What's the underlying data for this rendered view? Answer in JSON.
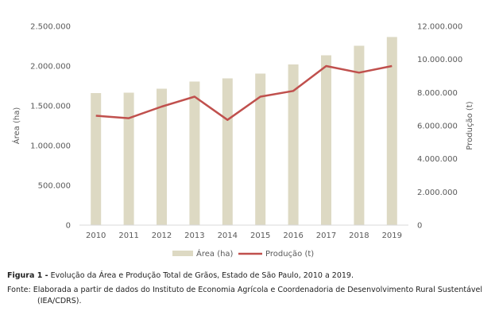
{
  "chart_data": {
    "type": "bar+line",
    "categories": [
      "2010",
      "2011",
      "2012",
      "2013",
      "2014",
      "2015",
      "2016",
      "2017",
      "2018",
      "2019"
    ],
    "series": [
      {
        "name": "Área (ha)",
        "type": "bar",
        "axis": "left",
        "color": "#ddd9c3",
        "values": [
          1660000,
          1665000,
          1715000,
          1805000,
          1845000,
          1905000,
          2020000,
          2135000,
          2255000,
          2365000
        ]
      },
      {
        "name": "Produção (t)",
        "type": "line",
        "axis": "right",
        "color": "#c0504d",
        "values": [
          6600000,
          6450000,
          7150000,
          7750000,
          6350000,
          7750000,
          8100000,
          9600000,
          9200000,
          9600000
        ]
      }
    ],
    "y_left": {
      "label": "Área (ha)",
      "range": [
        0,
        2500000
      ],
      "ticks": [
        "0",
        "500.000",
        "1.000.000",
        "1.500.000",
        "2.000.000",
        "2.500.000"
      ]
    },
    "y_right": {
      "label": "Produção (t)",
      "range": [
        0,
        12000000
      ],
      "ticks": [
        "0",
        "2.000.000",
        "4.000.000",
        "6.000.000",
        "8.000.000",
        "10.000.000",
        "12.000.000"
      ]
    },
    "grid": false,
    "legend_position": "bottom"
  },
  "legend": {
    "area_label": "Área (ha)",
    "producao_label": "Produção (t)"
  },
  "caption": {
    "figure_label": "Figura 1 -",
    "figure_text": " Evolução da Área e Produção Total de Grãos, Estado de São Paulo, 2010 a 2019.",
    "source_line1": "Fonte: Elaborada a partir de dados do Instituto de Economia Agrícola e Coordenadoria de Desenvolvimento Rural Sustentável",
    "source_line2": "(IEA/CDRS)."
  }
}
